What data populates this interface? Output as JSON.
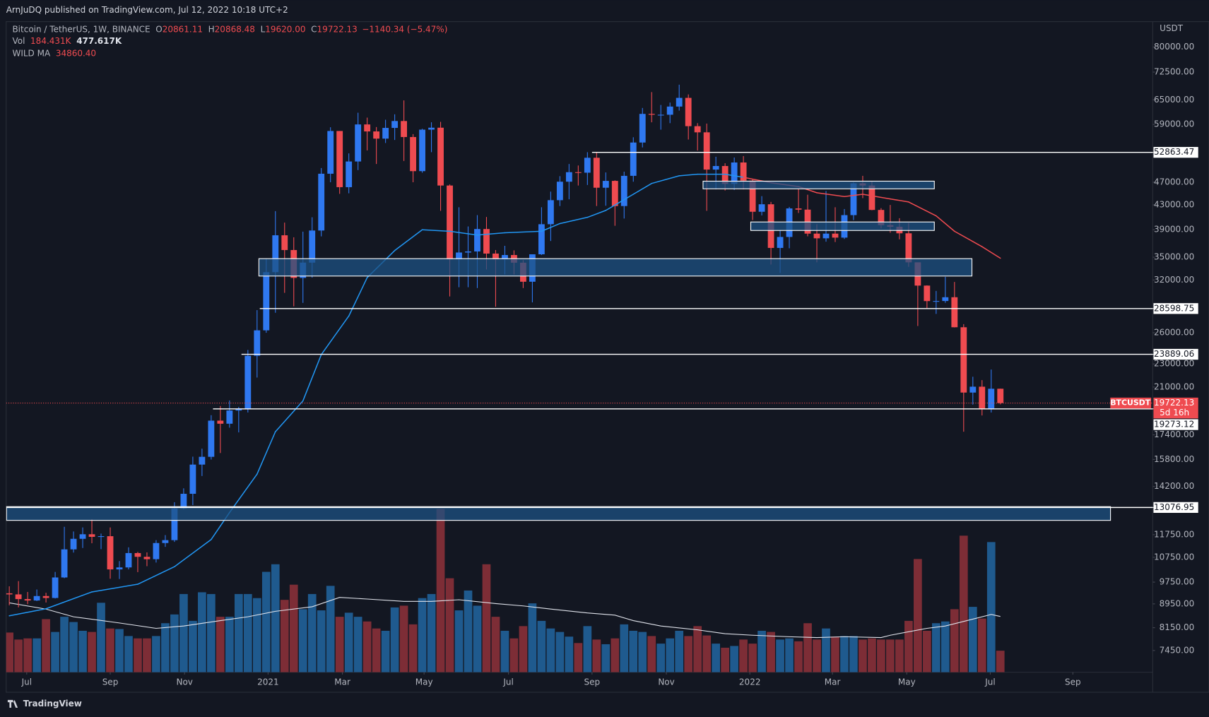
{
  "chart_data": {
    "type": "candlestick",
    "header": "ArnJuDQ published on TradingView.com, Jul 12, 2022 10:18 UTC+2",
    "title": "Bitcoin / TetherUS, 1W, BINANCE",
    "ohlc_legend": [
      {
        "label": "O",
        "value": "20861.11"
      },
      {
        "label": "H",
        "value": "20868.48"
      },
      {
        "label": "L",
        "value": "19620.00"
      },
      {
        "label": "C",
        "value": "19722.13"
      }
    ],
    "change": "−1140.34 (−5.47%)",
    "volume_legend": {
      "label": "Vol",
      "values": [
        "184.431K",
        "477.617K"
      ]
    },
    "ma_legend": {
      "label": "WILD MA",
      "value": "34860.40"
    },
    "y_axis_title": "USDT",
    "footer": "TradingView",
    "log_y": true,
    "xlim": [
      -0.34,
      124.6
    ],
    "ylim": [
      6840,
      88400
    ],
    "xticks": [
      {
        "value": 1.9,
        "label": "Jul"
      },
      {
        "value": 11.0,
        "label": "Sep"
      },
      {
        "value": 19.1,
        "label": "Nov"
      },
      {
        "value": 28.2,
        "label": "2021"
      },
      {
        "value": 36.3,
        "label": "Mar"
      },
      {
        "value": 45.2,
        "label": "May"
      },
      {
        "value": 54.4,
        "label": "Jul"
      },
      {
        "value": 63.5,
        "label": "Sep"
      },
      {
        "value": 71.6,
        "label": "Nov"
      },
      {
        "value": 80.7,
        "label": "2022"
      },
      {
        "value": 89.7,
        "label": "Mar"
      },
      {
        "value": 97.8,
        "label": "May"
      },
      {
        "value": 106.9,
        "label": "Jul"
      },
      {
        "value": 115.9,
        "label": "Sep"
      }
    ],
    "yticks": [
      {
        "value": 80000,
        "label": "80000.00"
      },
      {
        "value": 72500,
        "label": "72500.00"
      },
      {
        "value": 65000,
        "label": "65000.00"
      },
      {
        "value": 59000,
        "label": "59000.00"
      },
      {
        "value": 47000,
        "label": "47000.00"
      },
      {
        "value": 43000,
        "label": "43000.00"
      },
      {
        "value": 39000,
        "label": "39000.00"
      },
      {
        "value": 35000,
        "label": "35000.00"
      },
      {
        "value": 32000,
        "label": "32000.00"
      },
      {
        "value": 26000,
        "label": "26000.00"
      },
      {
        "value": 23000,
        "label": "23000.00"
      },
      {
        "value": 21000,
        "label": "21000.00"
      },
      {
        "value": 17400,
        "label": "17400.00"
      },
      {
        "value": 15800,
        "label": "15800.00"
      },
      {
        "value": 14200,
        "label": "14200.00"
      },
      {
        "value": 11750,
        "label": "11750.00"
      },
      {
        "value": 10750,
        "label": "10750.00"
      },
      {
        "value": 9750,
        "label": "9750.00"
      },
      {
        "value": 8950,
        "label": "8950.00"
      },
      {
        "value": 8150,
        "label": "8150.00"
      },
      {
        "value": 7450,
        "label": "7450.00"
      }
    ],
    "up_color": "#2f78f0",
    "down_color": "#ef4b50",
    "candles": [
      [
        9330,
        9590,
        8900,
        9290
      ],
      [
        9290,
        9790,
        8830,
        9120
      ],
      [
        9120,
        9380,
        8940,
        9070
      ],
      [
        9070,
        9470,
        9050,
        9230
      ],
      [
        9230,
        9350,
        9000,
        9160
      ],
      [
        9160,
        10150,
        9140,
        9930
      ],
      [
        9930,
        12120,
        9900,
        11090
      ],
      [
        11090,
        11900,
        10950,
        11560
      ],
      [
        11560,
        12090,
        11150,
        11770
      ],
      [
        11770,
        12490,
        11360,
        11650
      ],
      [
        11650,
        11800,
        11100,
        11680
      ],
      [
        11680,
        12090,
        9880,
        10250
      ],
      [
        10250,
        10590,
        9870,
        10330
      ],
      [
        10330,
        11180,
        10250,
        10930
      ],
      [
        10930,
        10980,
        10140,
        10770
      ],
      [
        10770,
        10960,
        10380,
        10670
      ],
      [
        10670,
        11500,
        10530,
        11370
      ],
      [
        11370,
        11730,
        11200,
        11500
      ],
      [
        11500,
        13350,
        11420,
        13030
      ],
      [
        13030,
        14100,
        12980,
        13800
      ],
      [
        13800,
        15970,
        13200,
        15480
      ],
      [
        15480,
        16480,
        14800,
        15960
      ],
      [
        15960,
        18800,
        15790,
        18400
      ],
      [
        18400,
        19490,
        16200,
        18180
      ],
      [
        18180,
        19920,
        17900,
        19150
      ],
      [
        19150,
        19420,
        17570,
        19270
      ],
      [
        19270,
        24300,
        19000,
        23750
      ],
      [
        23750,
        28420,
        21800,
        26250
      ],
      [
        26250,
        34800,
        26000,
        33000
      ],
      [
        33000,
        41950,
        28130,
        38150
      ],
      [
        38150,
        40100,
        30420,
        36000
      ],
      [
        36000,
        37850,
        28850,
        32260
      ],
      [
        32260,
        38700,
        29240,
        34260
      ],
      [
        34260,
        40950,
        32300,
        38870
      ],
      [
        38870,
        49700,
        37990,
        48600
      ],
      [
        48600,
        58350,
        47000,
        57500
      ],
      [
        57500,
        57500,
        44900,
        46100
      ],
      [
        46100,
        52650,
        45000,
        51000
      ],
      [
        51000,
        61780,
        49300,
        59000
      ],
      [
        59000,
        60600,
        53270,
        57400
      ],
      [
        57400,
        58400,
        50500,
        55800
      ],
      [
        55800,
        60100,
        54850,
        58200
      ],
      [
        58200,
        61400,
        55500,
        59800
      ],
      [
        59800,
        64850,
        51100,
        56150
      ],
      [
        56150,
        56800,
        47000,
        49100
      ],
      [
        49100,
        58000,
        48800,
        57800
      ],
      [
        57800,
        59500,
        52900,
        58250
      ],
      [
        58250,
        59600,
        42000,
        46400
      ],
      [
        46400,
        46600,
        30000,
        34700
      ],
      [
        34700,
        42600,
        31100,
        35650
      ],
      [
        35650,
        39500,
        31100,
        35800
      ],
      [
        35800,
        41300,
        31000,
        39100
      ],
      [
        39100,
        41000,
        33350,
        35500
      ],
      [
        35500,
        36000,
        28800,
        34700
      ],
      [
        34700,
        36600,
        32700,
        35300
      ],
      [
        35300,
        35950,
        32700,
        34250
      ],
      [
        34250,
        34600,
        31000,
        31780
      ],
      [
        31780,
        35400,
        29300,
        35400
      ],
      [
        35400,
        42600,
        35300,
        39850
      ],
      [
        39850,
        45300,
        37300,
        43800
      ],
      [
        43800,
        48140,
        42800,
        47100
      ],
      [
        47100,
        50500,
        43950,
        48900
      ],
      [
        48900,
        50200,
        46400,
        48800
      ],
      [
        48800,
        52900,
        46500,
        51750
      ],
      [
        51750,
        52900,
        42800,
        46000
      ],
      [
        46000,
        48850,
        42850,
        47250
      ],
      [
        47250,
        47350,
        39600,
        42800
      ],
      [
        42800,
        49000,
        40750,
        48200
      ],
      [
        48200,
        56100,
        47100,
        54950
      ],
      [
        54950,
        62950,
        53900,
        61500
      ],
      [
        61500,
        67000,
        59500,
        61300
      ],
      [
        61300,
        63700,
        57800,
        61300
      ],
      [
        61300,
        64300,
        59300,
        63300
      ],
      [
        63300,
        69000,
        62300,
        65500
      ],
      [
        65500,
        66400,
        55600,
        58600
      ],
      [
        58600,
        59300,
        53250,
        57200
      ],
      [
        57200,
        59200,
        42000,
        49400
      ],
      [
        49400,
        51950,
        45700,
        50100
      ],
      [
        50100,
        50650,
        45500,
        46700
      ],
      [
        46700,
        51800,
        45600,
        50800
      ],
      [
        50800,
        52100,
        45700,
        47300
      ],
      [
        47300,
        47550,
        40500,
        41850
      ],
      [
        41850,
        44500,
        41250,
        43100
      ],
      [
        43100,
        43500,
        34000,
        36300
      ],
      [
        36300,
        38900,
        32900,
        37900
      ],
      [
        37900,
        42650,
        36250,
        42400
      ],
      [
        42400,
        45850,
        41650,
        42200
      ],
      [
        42200,
        44750,
        38000,
        38400
      ],
      [
        38400,
        39850,
        34300,
        37700
      ],
      [
        37700,
        45400,
        37200,
        38400
      ],
      [
        38400,
        42600,
        37150,
        37800
      ],
      [
        37800,
        42300,
        37600,
        41300
      ],
      [
        41300,
        47000,
        40500,
        46800
      ],
      [
        46800,
        48200,
        44150,
        46400
      ],
      [
        46400,
        47200,
        42100,
        42150
      ],
      [
        42150,
        42450,
        39200,
        39700
      ],
      [
        39700,
        42980,
        38540,
        39450
      ],
      [
        39450,
        40800,
        37550,
        38450
      ],
      [
        38450,
        40050,
        33700,
        34300
      ],
      [
        34300,
        34250,
        26700,
        31300
      ],
      [
        31300,
        31330,
        28650,
        29450
      ],
      [
        29450,
        30650,
        28000,
        29460
      ],
      [
        29460,
        32400,
        29250,
        29900
      ],
      [
        29900,
        31750,
        26550,
        26570
      ],
      [
        26570,
        26900,
        17620,
        20550
      ],
      [
        20550,
        21870,
        19600,
        21030
      ],
      [
        21030,
        21580,
        18780,
        19300
      ],
      [
        19300,
        22500,
        19000,
        20860
      ],
      [
        20861.11,
        20868.48,
        19620.0,
        19722.13
      ]
    ],
    "volume_lim": [
      0,
      1400
    ],
    "volume_up_color": "#1f5a8e",
    "volume_down_color": "#7d2d36",
    "volume": [
      340,
      280,
      290,
      290,
      455,
      345,
      475,
      430,
      355,
      345,
      595,
      375,
      370,
      310,
      290,
      290,
      310,
      420,
      495,
      670,
      440,
      685,
      670,
      475,
      475,
      670,
      670,
      635,
      860,
      925,
      620,
      750,
      540,
      670,
      530,
      740,
      475,
      510,
      475,
      435,
      375,
      355,
      555,
      570,
      410,
      635,
      670,
      1400,
      805,
      530,
      700,
      570,
      925,
      475,
      355,
      290,
      395,
      590,
      440,
      375,
      345,
      305,
      250,
      395,
      280,
      240,
      290,
      410,
      355,
      345,
      310,
      245,
      290,
      355,
      310,
      395,
      315,
      245,
      210,
      225,
      280,
      245,
      355,
      345,
      280,
      290,
      265,
      420,
      280,
      375,
      305,
      310,
      310,
      280,
      290,
      280,
      280,
      280,
      440,
      970,
      355,
      420,
      435,
      540,
      1170,
      560,
      460,
      1115,
      184.431
    ],
    "wild_ma": {
      "x": [
        0,
        4,
        9,
        14,
        18,
        22,
        24,
        27,
        29,
        32,
        34,
        37,
        39,
        42,
        45,
        48,
        51,
        54,
        58,
        60,
        63,
        65,
        68,
        70,
        73,
        75,
        78,
        80,
        83,
        86,
        88,
        91,
        93,
        96,
        98,
        101,
        103,
        106,
        108
      ],
      "values": [
        8540,
        8780,
        9380,
        9670,
        10360,
        11530,
        12820,
        14910,
        17620,
        19890,
        23860,
        27770,
        32300,
        35930,
        38990,
        38760,
        38180,
        38530,
        38760,
        39950,
        40940,
        42070,
        44830,
        46780,
        48210,
        48510,
        48510,
        47920,
        46910,
        46210,
        45100,
        44430,
        44830,
        44020,
        43490,
        41180,
        38760,
        36480,
        34860.4
      ],
      "colors": [
        "#2196f3",
        "#2196f3",
        "#2196f3",
        "#2196f3",
        "#2196f3",
        "#2196f3",
        "#2196f3",
        "#2196f3",
        "#2196f3",
        "#2196f3",
        "#2196f3",
        "#2196f3",
        "#2196f3",
        "#2196f3",
        "#2196f3",
        "#2196f3",
        "#2196f3",
        "#2196f3",
        "#2196f3",
        "#2196f3",
        "#2196f3",
        "#2196f3",
        "#2196f3",
        "#2196f3",
        "#2196f3",
        "#2196f3",
        "#2196f3",
        "#ef4b50",
        "#ef4b50",
        "#ef4b50",
        "#ef4b50",
        "#ef4b50",
        "#ef4b50",
        "#ef4b50",
        "#ef4b50",
        "#ef4b50",
        "#ef4b50",
        "#ef4b50",
        "#ef4b50"
      ]
    },
    "volume_ma": {
      "color": "#e0e3eb",
      "x": [
        0,
        4,
        7,
        12,
        16,
        19,
        23,
        26,
        29,
        33,
        36,
        39,
        43,
        46,
        49,
        53,
        56,
        59,
        63,
        66,
        68,
        71,
        75,
        78,
        81,
        85,
        88,
        91,
        95,
        96,
        100,
        102,
        105,
        107,
        108
      ],
      "values": [
        594,
        541,
        475,
        422,
        376,
        396,
        442,
        475,
        522,
        561,
        641,
        627,
        607,
        607,
        621,
        588,
        568,
        541,
        508,
        489,
        442,
        396,
        363,
        330,
        317,
        304,
        297,
        304,
        297,
        317,
        376,
        396,
        455,
        495,
        477.617
      ]
    },
    "level_color": "#ffffff",
    "levels": [
      {
        "value": 52863.47,
        "start": 63.5
      },
      {
        "value": 28598.75,
        "start": 27.3
      },
      {
        "value": 23889.06,
        "start": 25.3
      },
      {
        "value": 19273.12,
        "start": 22.2
      },
      {
        "value": 13076.95,
        "start": -0.3
      }
    ],
    "zone_color": "#1e5283",
    "zones": [
      {
        "top": 34800,
        "bottom": 32500,
        "start": 27.2,
        "end": 104.9
      },
      {
        "top": 47200,
        "bottom": 45800,
        "start": 75.6,
        "end": 100.8
      },
      {
        "top": 40200,
        "bottom": 38880,
        "start": 80.8,
        "end": 100.8
      },
      {
        "top": 13120,
        "bottom": 12430,
        "start": -0.3,
        "end": 120
      }
    ],
    "last": {
      "symbol": "BTCUSDT",
      "value": 19722.13,
      "countdown": "5d 16h",
      "color": "#ef4b50"
    }
  }
}
